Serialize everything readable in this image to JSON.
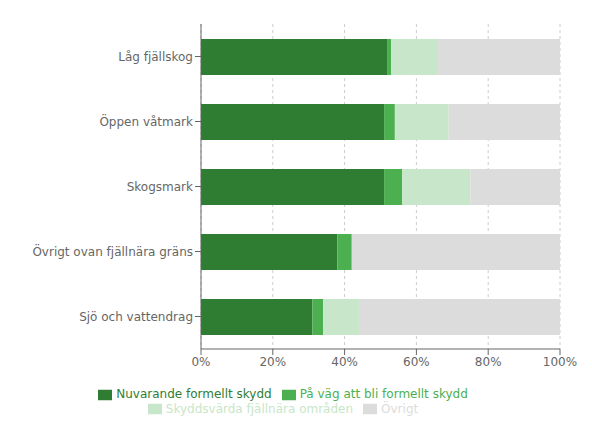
{
  "chart_data": {
    "type": "bar",
    "orientation": "horizontal",
    "stacked": true,
    "categories": [
      "Låg fjällskog",
      "Öppen våtmark",
      "Skogsmark",
      "Övrigt ovan fjällnära gräns",
      "Sjö och vattendrag"
    ],
    "series": [
      {
        "name": "Nuvarande formellt skydd",
        "color": "#2E7D32",
        "values": [
          52,
          51,
          51,
          38,
          31
        ]
      },
      {
        "name": "På väg att bli formellt skydd",
        "color": "#4CAF50",
        "values": [
          1,
          3,
          5,
          4,
          3
        ]
      },
      {
        "name": "Skyddsvärda fjällnära områden",
        "color": "#C8E6C9",
        "values": [
          13,
          15,
          19,
          0,
          10
        ]
      },
      {
        "name": "Övrigt",
        "color": "#DCDCDC",
        "values": [
          34,
          31,
          25,
          58,
          56
        ]
      }
    ],
    "xlim": [
      0,
      100
    ],
    "xticks": [
      {
        "value": 0,
        "label": "0%"
      },
      {
        "value": 20,
        "label": "20%"
      },
      {
        "value": 40,
        "label": "40%"
      },
      {
        "value": 60,
        "label": "60%"
      },
      {
        "value": 80,
        "label": "80%"
      },
      {
        "value": 100,
        "label": "100%"
      }
    ],
    "grid": true,
    "legend": "bottom"
  }
}
